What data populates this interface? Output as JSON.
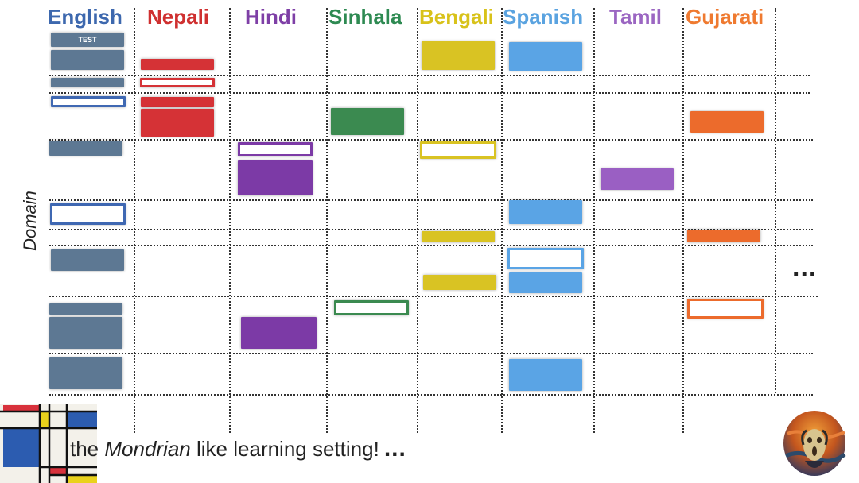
{
  "languages": [
    {
      "name": "English",
      "color": "#3d68ae"
    },
    {
      "name": "Nepali",
      "color": "#cf3030"
    },
    {
      "name": "Hindi",
      "color": "#7e3fa6"
    },
    {
      "name": "Sinhala",
      "color": "#2e8a52"
    },
    {
      "name": "Bengali",
      "color": "#d8c21a"
    },
    {
      "name": "Spanish",
      "color": "#5aa3e0"
    },
    {
      "name": "Tamil",
      "color": "#9b66c2"
    },
    {
      "name": "Gujarati",
      "color": "#ef7a30"
    }
  ],
  "block_colors": {
    "English": "#5d7893",
    "Nepali": "#d53236",
    "Hindi": "#7c3aa6",
    "Sinhala": "#3b8a50",
    "Bengali": "#d9c323",
    "Spanish": "#5aa4e5",
    "Tamil": "#9a5fc3",
    "Gujarati": "#ec6b2c",
    "EnglishOutline": "#3f68b2"
  },
  "test_label": "TEST",
  "axis_label": "Domain",
  "ellipsis": "...",
  "caption": {
    "before": "the ",
    "emph": "Mondrian",
    "after": " like learning setting!",
    "dots": "..."
  },
  "images": {
    "mondrian": "mondrian-painting",
    "scream": "the-scream-painting"
  }
}
